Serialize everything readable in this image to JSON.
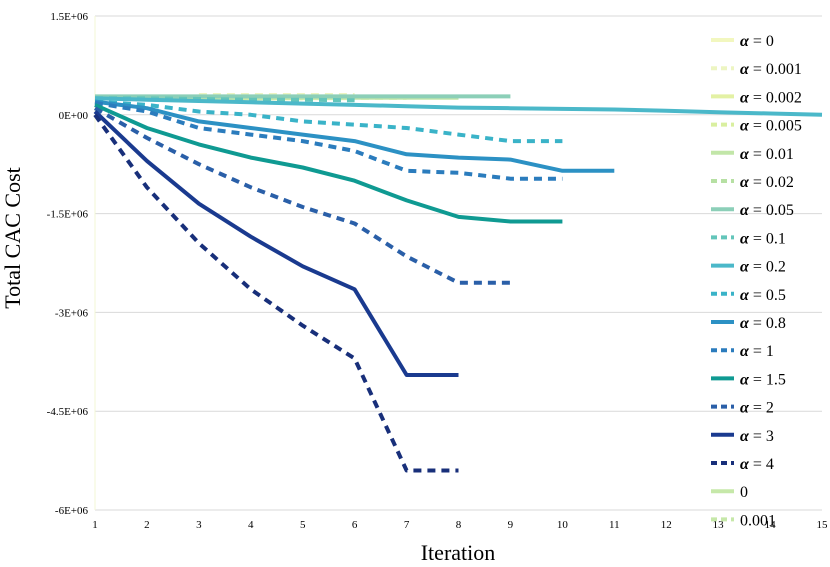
{
  "chart_data": {
    "type": "line",
    "title": "",
    "xlabel": "Iteration",
    "ylabel": "Total CAC Cost",
    "xlim": [
      1,
      15
    ],
    "ylim": [
      -6000000,
      1500000
    ],
    "xticks": [
      "1",
      "2",
      "3",
      "4",
      "5",
      "6",
      "7",
      "8",
      "9",
      "10",
      "11",
      "12",
      "13",
      "14",
      "15"
    ],
    "yticks": [
      {
        "value": 1500000,
        "label": "1.5E+06"
      },
      {
        "value": 0,
        "label": "0E+00"
      },
      {
        "value": -1500000,
        "label": "-1.5E+06"
      },
      {
        "value": -3000000,
        "label": "-3E+06"
      },
      {
        "value": -4500000,
        "label": "-4.5E+06"
      },
      {
        "value": -6000000,
        "label": "-6E+06"
      }
    ],
    "grid": "horizontal",
    "legend_position": "right",
    "series": [
      {
        "name": "= 0",
        "alpha_label": true,
        "color": "#f2f7bf",
        "dash": false,
        "x": [
          1,
          2,
          3,
          4,
          5,
          6
        ],
        "y": [
          250000,
          250000,
          250000,
          250000,
          250000,
          250000
        ]
      },
      {
        "name": "= 0.001",
        "alpha_label": true,
        "color": "#edf5c2",
        "dash": true,
        "x": [
          3,
          4,
          5,
          6
        ],
        "y": [
          300000,
          300000,
          300000,
          300000
        ]
      },
      {
        "name": "= 0.002",
        "alpha_label": true,
        "color": "#e3f1a4",
        "dash": false,
        "x": [
          1,
          2,
          3,
          4,
          5
        ],
        "y": [
          250000,
          250000,
          250000,
          250000,
          250000
        ]
      },
      {
        "name": "= 0.005",
        "alpha_label": true,
        "color": "#d9ef9f",
        "dash": true,
        "x": [
          1,
          2,
          3,
          4,
          5,
          6,
          7
        ],
        "y": [
          260000,
          260000,
          260000,
          260000,
          260000,
          260000,
          260000
        ]
      },
      {
        "name": "= 0.01",
        "alpha_label": true,
        "color": "#c2e6a8",
        "dash": false,
        "x": [
          1,
          2,
          3,
          4,
          5,
          6,
          7,
          8
        ],
        "y": [
          260000,
          260000,
          260000,
          260000,
          260000,
          260000,
          260000,
          260000
        ]
      },
      {
        "name": "= 0.02",
        "alpha_label": true,
        "color": "#b6e0a3",
        "dash": true,
        "x": [
          1,
          2,
          3,
          4,
          5,
          6
        ],
        "y": [
          270000,
          270000,
          270000,
          270000,
          270000,
          270000
        ]
      },
      {
        "name": "= 0.05",
        "alpha_label": true,
        "color": "#8ccfb8",
        "dash": false,
        "x": [
          1,
          2,
          3,
          4,
          5,
          6,
          7,
          8,
          9
        ],
        "y": [
          280000,
          280000,
          280000,
          280000,
          280000,
          280000,
          280000,
          280000,
          280000
        ]
      },
      {
        "name": "= 0.1",
        "alpha_label": true,
        "color": "#63c5ba",
        "dash": true,
        "x": [
          1,
          2,
          3,
          4,
          5,
          6
        ],
        "y": [
          250000,
          250000,
          240000,
          230000,
          230000,
          220000
        ]
      },
      {
        "name": "= 0.2",
        "alpha_label": true,
        "color": "#4bb8c9",
        "dash": false,
        "x": [
          1,
          2,
          3,
          4,
          5,
          6,
          7,
          8,
          9,
          10,
          11,
          12,
          13,
          14,
          15
        ],
        "y": [
          250000,
          230000,
          210000,
          190000,
          170000,
          150000,
          130000,
          110000,
          100000,
          90000,
          80000,
          60000,
          40000,
          20000,
          0
        ]
      },
      {
        "name": "= 0.5",
        "alpha_label": true,
        "color": "#3ab3c8",
        "dash": true,
        "x": [
          1,
          2,
          3,
          4,
          5,
          6,
          7,
          8,
          9,
          10
        ],
        "y": [
          200000,
          150000,
          50000,
          0,
          -100000,
          -150000,
          -200000,
          -300000,
          -400000,
          -400000
        ]
      },
      {
        "name": "= 0.8",
        "alpha_label": true,
        "color": "#2c91c4",
        "dash": false,
        "x": [
          1,
          2,
          3,
          4,
          5,
          6,
          7,
          8,
          9,
          10,
          11
        ],
        "y": [
          200000,
          100000,
          -100000,
          -200000,
          -300000,
          -400000,
          -600000,
          -650000,
          -680000,
          -850000,
          -850000
        ]
      },
      {
        "name": "= 1",
        "alpha_label": true,
        "color": "#2b7cbd",
        "dash": true,
        "x": [
          1,
          2,
          3,
          4,
          5,
          6,
          7,
          8,
          9,
          10
        ],
        "y": [
          180000,
          50000,
          -200000,
          -300000,
          -400000,
          -550000,
          -850000,
          -880000,
          -970000,
          -970000
        ]
      },
      {
        "name": "= 1.5",
        "alpha_label": true,
        "color": "#0f9a92",
        "dash": false,
        "x": [
          1,
          2,
          3,
          4,
          5,
          6,
          7,
          8,
          9,
          10
        ],
        "y": [
          150000,
          -200000,
          -450000,
          -650000,
          -800000,
          -1000000,
          -1300000,
          -1550000,
          -1620000,
          -1620000
        ]
      },
      {
        "name": "= 2",
        "alpha_label": true,
        "color": "#2a5fa8",
        "dash": true,
        "x": [
          1,
          2,
          3,
          4,
          5,
          6,
          7,
          8,
          9
        ],
        "y": [
          100000,
          -350000,
          -750000,
          -1100000,
          -1400000,
          -1650000,
          -2150000,
          -2550000,
          -2550000
        ]
      },
      {
        "name": "= 3",
        "alpha_label": true,
        "color": "#1a3a8f",
        "dash": false,
        "x": [
          1,
          2,
          3,
          4,
          5,
          6,
          7,
          8
        ],
        "y": [
          50000,
          -700000,
          -1350000,
          -1850000,
          -2300000,
          -2650000,
          -3950000,
          -3950000
        ]
      },
      {
        "name": "= 4",
        "alpha_label": true,
        "color": "#182f7a",
        "dash": true,
        "x": [
          1,
          2,
          3,
          4,
          5,
          6,
          7,
          8
        ],
        "y": [
          0,
          -1100000,
          -1950000,
          -2650000,
          -3200000,
          -3700000,
          -5400000,
          -5400000
        ]
      },
      {
        "name": "0",
        "alpha_label": false,
        "color": "#c6e8a9",
        "dash": false,
        "x": [],
        "y": []
      },
      {
        "name": "0.001",
        "alpha_label": false,
        "color": "#c6e8a9",
        "dash": true,
        "x": [],
        "y": []
      }
    ],
    "legend_symbol": "α"
  }
}
